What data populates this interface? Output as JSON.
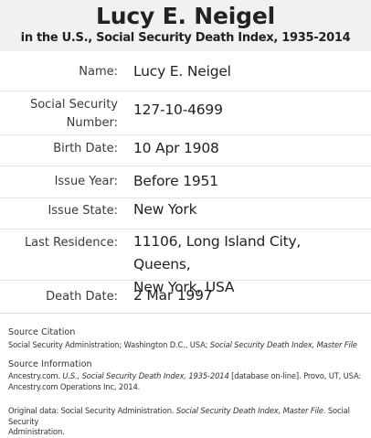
{
  "header": {
    "name": "Lucy E. Neigel",
    "subtitle": "in the U.S., Social Security Death Index, 1935-2014"
  },
  "fields": [
    {
      "label": "Name:",
      "value": "Lucy E. Neigel"
    },
    {
      "label_line1": "Social Security",
      "label_line2": "Number:",
      "value": "127-10-4699"
    },
    {
      "label": "Birth Date:",
      "value": "10 Apr 1908"
    },
    {
      "label": "Issue Year:",
      "value": "Before 1951"
    },
    {
      "label": "Issue State:",
      "value": "New York"
    },
    {
      "label": "Last Residence:",
      "value_line1": "11106, Long Island City, Queens,",
      "value_line2": "New York, USA"
    },
    {
      "label": "Death Date:",
      "value": "2 Mar 1997"
    }
  ],
  "source_citation": {
    "title": "Source Citation",
    "text_plain": "Social Security Administration; Washington D.C., USA; ",
    "text_italic": "Social Security Death Index, Master File"
  },
  "source_information": {
    "title": "Source Information",
    "line1_plain_a": "Ancestry.com. ",
    "line1_italic": "U.S., Social Security Death Index, 1935-2014",
    "line1_plain_b": " [database on-line]. Provo, UT, USA:",
    "line2": "Ancestry.com Operations Inc, 2014."
  },
  "original_data": {
    "plain_a": "Original data: Social Security Administration. ",
    "italic": "Social Security Death Index, Master File",
    "plain_b": ". Social Security",
    "line2": "Administration."
  }
}
